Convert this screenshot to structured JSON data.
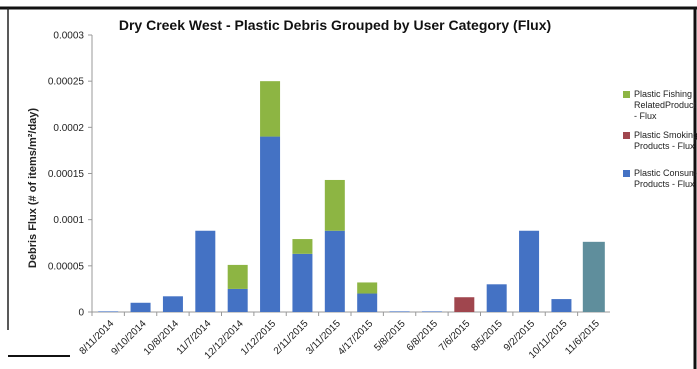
{
  "chart_data": {
    "type": "bar",
    "stacked": true,
    "title": "Dry Creek West - Plastic Debris Grouped by User Category (Flux)",
    "ylabel": "Debris Flux (# of items/m²/day)",
    "xlabel": "",
    "ylim": [
      0,
      0.0003
    ],
    "y_ticks": [
      "0",
      "0.00005",
      "0.0001",
      "0.00015",
      "0.0002",
      "0.00025",
      "0.0003"
    ],
    "y_tick_values": [
      0,
      5e-05,
      0.0001,
      0.00015,
      0.0002,
      0.00025,
      0.0003
    ],
    "grid": false,
    "legend_position": "right",
    "categories": [
      "8/11/2014",
      "9/10/2014",
      "10/8/2014",
      "11/7/2014",
      "12/12/2014",
      "1/12/2015",
      "2/11/2015",
      "3/11/2015",
      "4/17/2015",
      "5/8/2015",
      "6/8/2015",
      "7/6/2015",
      "8/5/2015",
      "9/2/2015",
      "10/11/2015",
      "11/6/2015"
    ],
    "series": [
      {
        "name": "Plastic Consumer Products - Flux",
        "legend_lines": [
          "Plastic Consume",
          "Products - Flux"
        ],
        "color": "#4472C4",
        "values": [
          0,
          1e-05,
          1.7e-05,
          8.8e-05,
          2.5e-05,
          0.00019,
          6.3e-05,
          8.8e-05,
          2e-05,
          0,
          0,
          0,
          3e-05,
          8.8e-05,
          1.4e-05,
          0
        ]
      },
      {
        "name": "Plastic Smoking Products - Flux",
        "legend_lines": [
          "Plastic Smoking",
          "Products - Flux"
        ],
        "color": "#A0464E",
        "values": [
          0,
          0,
          0,
          0,
          0,
          0,
          0,
          0,
          0,
          0,
          0,
          1.6e-05,
          0,
          0,
          0,
          0
        ]
      },
      {
        "name": "Plastic Fishing Related Products - Flux",
        "legend_lines": [
          "Plastic Fishing",
          "RelatedProduct",
          "- Flux"
        ],
        "color": "#8DB543",
        "values": [
          0,
          0,
          0,
          0,
          2.6e-05,
          6e-05,
          1.6e-05,
          5.5e-05,
          1.2e-05,
          0,
          0,
          0,
          0,
          0,
          0,
          0
        ]
      }
    ],
    "extra_bars": [
      {
        "category": "11/6/2015",
        "value": 7.6e-05,
        "color": "#5F8E9C"
      }
    ]
  }
}
